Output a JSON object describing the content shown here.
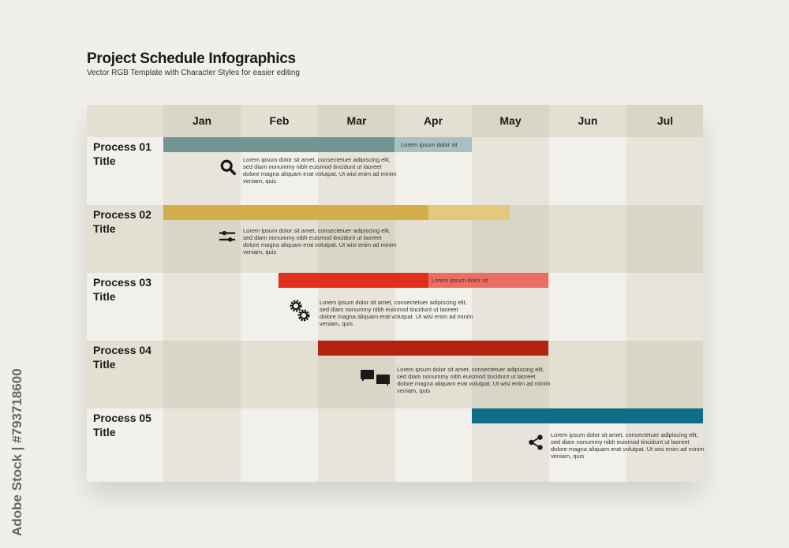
{
  "header": {
    "title": "Project Schedule Infographics",
    "subtitle": "Vector RGB Template with Character Styles for easier editing"
  },
  "months": [
    "Jan",
    "Feb",
    "Mar",
    "Apr",
    "May",
    "Jun",
    "Jul"
  ],
  "processes": [
    {
      "label": "Process 01\nTitle",
      "bar_label": "Lorem ipsum dolor sit",
      "icon": "search-icon",
      "color": "#719593",
      "light_color": "#a7c1c2",
      "description": "Lorem ipsum dolor sit amet, consectetuer adipiscing elit, sed diam nonummy nibh euismod tincidunt ut laoreet dolore magna aliquam erat volutpat. Ut wisi enim ad minim veniam, quis"
    },
    {
      "label": "Process 02\nTitle",
      "bar_label": "",
      "icon": "sliders-icon",
      "color": "#d4ae48",
      "light_color": "#e3c97e",
      "description": "Lorem ipsum dolor sit amet, consectetuer adipiscing elit, sed diam nonummy nibh euismod tincidunt ut laoreet dolore magna aliquam erat volutpat. Ut wisi enim ad minim veniam, quis"
    },
    {
      "label": "Process 03\nTitle",
      "bar_label": "Lorem ipsum dolor sit",
      "icon": "gears-icon",
      "color": "#e0301b",
      "light_color": "#ec6e63",
      "description": "Lorem ipsum dolor sit amet, consectetuer adipiscing elit, sed diam nonummy nibh euismod tincidunt ut laoreet dolore magna aliquam erat volutpat. Ut wisi enim ad minim veniam, quis"
    },
    {
      "label": "Process 04\nTitle",
      "bar_label": "",
      "icon": "chat-icon",
      "color": "#b3220f",
      "description": "Lorem ipsum dolor sit amet, consectetuer adipiscing elit, sed diam nonummy nibh euismod tincidunt ut laoreet dolore magna aliquam erat volutpat. Ut wisi enim ad minim veniam, quis"
    },
    {
      "label": "Process 05\nTitle",
      "bar_label": "",
      "icon": "share-icon",
      "color": "#0f6e87",
      "description": "Lorem ipsum dolor sit amet, consectetuer adipiscing elit, sed diam nonummy nibh euismod tincidunt ut laoreet dolore magna aliquam erat volutpat. Ut wisi enim ad minim veniam, quis"
    }
  ],
  "watermark": "Adobe Stock | #793718600"
}
